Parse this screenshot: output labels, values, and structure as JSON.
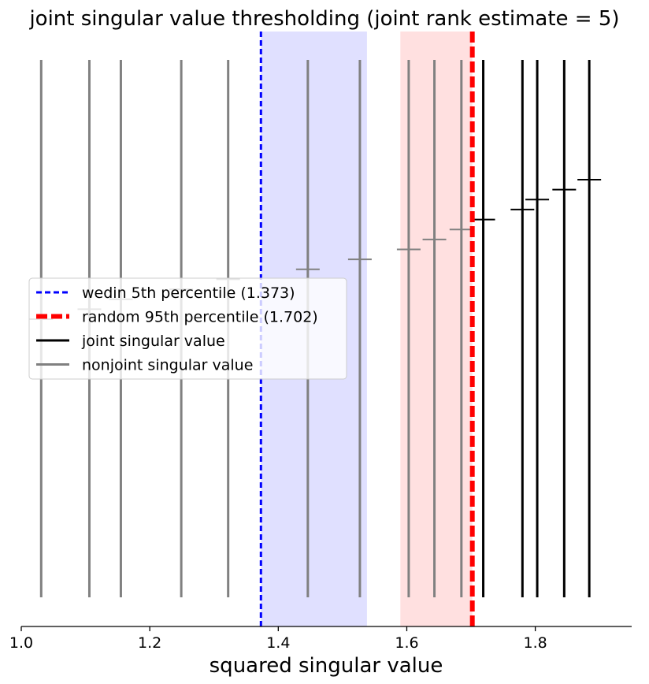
{
  "chart_data": {
    "type": "line",
    "title": "joint singular value thresholding (joint rank estimate = 5)",
    "xlabel": "squared singular value",
    "ylabel": "",
    "xlim": [
      1.0,
      1.95
    ],
    "xticks": [
      "1.0",
      "1.2",
      "1.4",
      "1.6",
      "1.8"
    ],
    "y_axis_visible": false,
    "grid": false,
    "legend_placement": "center-left",
    "colors": {
      "joint": "#000000",
      "nonjoint": "#808080",
      "wedin": "#0000ff",
      "random": "#ff0000",
      "wedin_band": "#e0e0ff",
      "random_band": "#ffe0e0"
    },
    "wedin_threshold": 1.373,
    "random_threshold": 1.702,
    "wedin_band": [
      1.373,
      1.538
    ],
    "random_band": [
      1.59,
      1.702
    ],
    "legend": [
      {
        "label": "wedin 5th percentile (1.373)",
        "style": "dashed",
        "color": "#0000ff"
      },
      {
        "label": "random 95th percentile (1.702)",
        "style": "dashed-thick",
        "color": "#ff0000"
      },
      {
        "label": "joint singular value",
        "style": "solid",
        "color": "#000000"
      },
      {
        "label": "nonjoint singular value",
        "style": "solid",
        "color": "#808080"
      }
    ],
    "singular_values": [
      {
        "value": 1.031,
        "joint": false
      },
      {
        "value": 1.106,
        "joint": false
      },
      {
        "value": 1.155,
        "joint": false
      },
      {
        "value": 1.249,
        "joint": false
      },
      {
        "value": 1.322,
        "joint": false
      },
      {
        "value": 1.446,
        "joint": false
      },
      {
        "value": 1.527,
        "joint": false
      },
      {
        "value": 1.603,
        "joint": false
      },
      {
        "value": 1.643,
        "joint": false
      },
      {
        "value": 1.685,
        "joint": false
      },
      {
        "value": 1.719,
        "joint": true
      },
      {
        "value": 1.78,
        "joint": true
      },
      {
        "value": 1.803,
        "joint": true
      },
      {
        "value": 1.845,
        "joint": true
      },
      {
        "value": 1.884,
        "joint": true
      }
    ]
  }
}
